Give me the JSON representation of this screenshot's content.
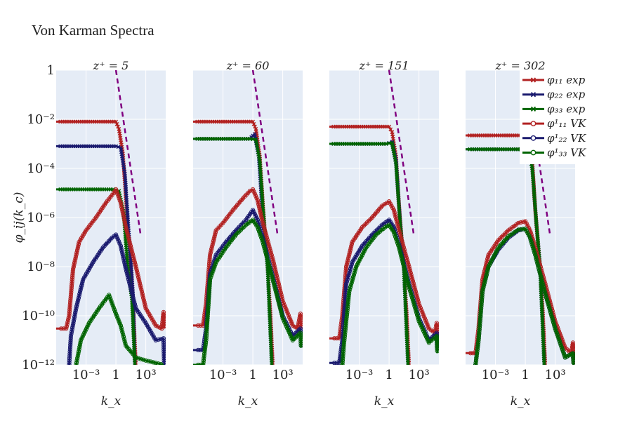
{
  "chart_data": {
    "type": "line",
    "title": "Von Karman Spectra",
    "xlabel": "k_x",
    "ylabel": "φ_ij(k_c)",
    "x_scale": "log",
    "y_scale": "log",
    "xlim": [
      1e-06,
      100000
    ],
    "ylim": [
      1e-12,
      1
    ],
    "x_ticks": [
      "10⁻³",
      "1",
      "10³"
    ],
    "y_ticks": [
      "1",
      "10⁻²",
      "10⁻⁴",
      "10⁻⁶",
      "10⁻⁸",
      "10⁻¹⁰",
      "10⁻¹²"
    ],
    "grid": true,
    "legend_position": "top-right",
    "colors": {
      "phi11": "#b22222",
      "phi22": "#1a1a6e",
      "phi33": "#006400",
      "ref": "#800080",
      "plot_bg": "#e5ecf6"
    },
    "legend": [
      {
        "label": "φ₁₁ exp",
        "color": "#b22222",
        "marker": "x"
      },
      {
        "label": "φ₂₂ exp",
        "color": "#1a1a6e",
        "marker": "x"
      },
      {
        "label": "φ₃₃ exp",
        "color": "#006400",
        "marker": "x"
      },
      {
        "label": "φ¹₁₁ VK",
        "color": "#b22222",
        "marker": "circle"
      },
      {
        "label": "φ¹₂₂ VK",
        "color": "#1a1a6e",
        "marker": "circle"
      },
      {
        "label": "φ¹₃₃ VK",
        "color": "#006400",
        "marker": "circle"
      }
    ],
    "panels": [
      {
        "title": "z⁺ = 5",
        "series": [
          {
            "name": "φ₁₁ exp",
            "x": [
              1e-06,
              1,
              2,
              5,
              10,
              30,
              60,
              100
            ],
            "y": [
              0.008,
              0.008,
              0.004,
              0.0004,
              6e-06,
              1e-08,
              1e-10,
              1e-12
            ]
          },
          {
            "name": "φ₂₂ exp",
            "x": [
              1e-06,
              1,
              3,
              8,
              20,
              50,
              80
            ],
            "y": [
              0.0008,
              0.0008,
              0.0007,
              6e-05,
              2e-07,
              1e-09,
              1e-12
            ]
          },
          {
            "name": "φ₃₃ exp",
            "x": [
              1e-06,
              0.5,
              2,
              6,
              15,
              40,
              80
            ],
            "y": [
              1.4e-05,
              1.4e-05,
              1.2e-05,
              1.5e-06,
              1e-08,
              5e-10,
              1e-12
            ]
          },
          {
            "name": "φ¹₁₁ VK",
            "x": [
              1e-06,
              1e-05,
              2e-05,
              5e-05,
              0.0002,
              0.001,
              0.01,
              0.1,
              0.6,
              1,
              3,
              10,
              100,
              1000,
              10000,
              40000,
              60000,
              70000
            ],
            "y": [
              3e-11,
              3e-11,
              1e-10,
              8e-09,
              1e-07,
              3e-07,
              1e-06,
              4e-06,
              1e-05,
              1.4e-05,
              4e-06,
              4e-07,
              1e-08,
              2e-10,
              4e-11,
              3e-11,
              1.4e-10,
              3e-11
            ]
          },
          {
            "name": "φ¹₂₂ VK",
            "x": [
              2e-05,
              3e-05,
              0.0001,
              0.0005,
              0.005,
              0.05,
              0.4,
              1,
              3,
              10,
              100,
              1000,
              10000,
              60000,
              70000
            ],
            "y": [
              1e-12,
              1.5e-11,
              2e-10,
              3e-09,
              1.5e-08,
              6e-08,
              1.5e-07,
              2e-07,
              7e-08,
              8e-09,
              2e-10,
              5e-11,
              1e-11,
              1.2e-11,
              1e-12
            ]
          },
          {
            "name": "φ¹₃₃ VK",
            "x": [
              0.0001,
              0.0003,
              0.002,
              0.02,
              0.2,
              1,
              3,
              10,
              100,
              1000,
              10000,
              60000
            ],
            "y": [
              1e-12,
              1e-11,
              5e-11,
              2e-10,
              7e-10,
              1.2e-10,
              4e-11,
              6e-12,
              2e-12,
              1.5e-12,
              1.2e-12,
              1e-12
            ]
          },
          {
            "name": "ref",
            "x": [
              1,
              300
            ],
            "y": [
              1,
              2e-07
            ]
          }
        ]
      },
      {
        "title": "z⁺ = 60",
        "series": [
          {
            "name": "φ₁₁ exp",
            "x": [
              1e-06,
              1,
              2,
              5,
              10,
              30,
              60,
              100
            ],
            "y": [
              0.008,
              0.008,
              0.004,
              0.0003,
              4e-06,
              1e-08,
              1e-10,
              1e-12
            ]
          },
          {
            "name": "φ₂₂ exp",
            "x": [
              1e-06,
              0.5,
              1.5,
              4,
              10,
              30,
              80
            ],
            "y": [
              0.0016,
              0.0016,
              0.0025,
              0.0003,
              1e-06,
              1e-08,
              1e-12
            ]
          },
          {
            "name": "φ₃₃ exp",
            "x": [
              1e-06,
              0.5,
              2,
              5,
              12,
              30,
              80
            ],
            "y": [
              0.0016,
              0.0016,
              0.0015,
              0.0002,
              1e-06,
              1e-08,
              1e-12
            ]
          },
          {
            "name": "φ¹₁₁ VK",
            "x": [
              1e-06,
              1e-05,
              2e-05,
              5e-05,
              0.0002,
              0.001,
              0.01,
              0.1,
              0.5,
              1,
              3,
              10,
              100,
              1000,
              10000,
              30000,
              60000,
              70000
            ],
            "y": [
              4e-11,
              4e-11,
              3e-10,
              3e-08,
              3e-07,
              6e-07,
              2e-06,
              6e-06,
              1.2e-05,
              1.4e-05,
              5e-06,
              6e-07,
              2e-08,
              4e-10,
              4e-11,
              3e-11,
              1.2e-10,
              3e-11
            ]
          },
          {
            "name": "φ¹₂₂ VK",
            "x": [
              1e-06,
              1e-05,
              2e-05,
              5e-05,
              0.0002,
              0.002,
              0.02,
              0.2,
              1,
              3,
              10,
              100,
              1000,
              10000,
              60000,
              70000
            ],
            "y": [
              4e-12,
              4e-12,
              3e-11,
              5e-09,
              3e-08,
              1e-07,
              3e-07,
              8e-07,
              2e-06,
              8e-07,
              1.5e-07,
              4e-09,
              1e-10,
              1.5e-11,
              3e-11,
              5e-12
            ]
          },
          {
            "name": "φ¹₃₃ VK",
            "x": [
              1e-06,
              1e-05,
              2e-05,
              5e-05,
              0.0002,
              0.002,
              0.02,
              0.2,
              1,
              3,
              10,
              100,
              1000,
              10000,
              60000,
              70000
            ],
            "y": [
              1e-12,
              1e-12,
              1e-11,
              3e-09,
              1.5e-08,
              6e-08,
              2e-07,
              5e-07,
              8e-07,
              4e-07,
              1e-07,
              3e-09,
              8e-11,
              1e-11,
              2e-11,
              5e-12
            ]
          },
          {
            "name": "ref",
            "x": [
              1,
              300
            ],
            "y": [
              1,
              2e-07
            ]
          }
        ]
      },
      {
        "title": "z⁺ = 151",
        "series": [
          {
            "name": "φ₁₁ exp",
            "x": [
              1e-06,
              1,
              2,
              5,
              10,
              30,
              60,
              100
            ],
            "y": [
              0.005,
              0.005,
              0.003,
              0.0003,
              3e-06,
              1e-08,
              1e-10,
              1e-12
            ]
          },
          {
            "name": "φ₂₂ exp",
            "x": [
              1e-06,
              0.5,
              2,
              5,
              12,
              30,
              80
            ],
            "y": [
              0.001,
              0.001,
              0.0012,
              0.0002,
              1e-06,
              1e-08,
              1e-12
            ]
          },
          {
            "name": "φ₃₃ exp",
            "x": [
              1e-06,
              0.5,
              2,
              5,
              12,
              30,
              80
            ],
            "y": [
              0.001,
              0.001,
              0.0011,
              0.00015,
              8e-07,
              1e-08,
              1e-12
            ]
          },
          {
            "name": "φ¹₁₁ VK",
            "x": [
              1e-06,
              1e-05,
              2e-05,
              5e-05,
              0.0002,
              0.002,
              0.02,
              0.2,
              1,
              3,
              10,
              100,
              1000,
              10000,
              40000,
              60000,
              70000
            ],
            "y": [
              1.2e-11,
              1.2e-11,
              1e-10,
              1e-08,
              1e-07,
              4e-07,
              1e-06,
              3e-06,
              4.5e-06,
              2e-06,
              3e-07,
              1e-08,
              3e-10,
              3e-11,
              2e-11,
              5e-11,
              1.5e-11
            ]
          },
          {
            "name": "φ¹₂₂ VK",
            "x": [
              1e-06,
              1e-05,
              2e-05,
              5e-05,
              0.0002,
              0.002,
              0.02,
              0.2,
              1,
              3,
              10,
              100,
              1000,
              10000,
              60000,
              70000
            ],
            "y": [
              1.2e-12,
              1.2e-12,
              1e-11,
              2e-09,
              1.5e-08,
              7e-08,
              2e-07,
              5e-07,
              8e-07,
              4e-07,
              8e-08,
              2e-09,
              8e-11,
              1e-11,
              2e-11,
              4e-12
            ]
          },
          {
            "name": "φ¹₃₃ VK",
            "x": [
              2e-05,
              3e-05,
              0.0001,
              0.0005,
              0.005,
              0.05,
              0.4,
              1,
              3,
              10,
              100,
              1000,
              10000,
              60000,
              70000
            ],
            "y": [
              1e-12,
              8e-12,
              1e-09,
              1e-08,
              6e-08,
              2e-07,
              4e-07,
              5e-07,
              2.5e-07,
              6e-08,
              1.5e-09,
              6e-11,
              8e-12,
              1.5e-11,
              3e-12
            ]
          },
          {
            "name": "ref",
            "x": [
              1,
              300
            ],
            "y": [
              1,
              2e-07
            ]
          }
        ]
      },
      {
        "title": "z⁺ = 302",
        "series": [
          {
            "name": "φ₁₁ exp",
            "x": [
              1e-06,
              1,
              2,
              5,
              10,
              30,
              60,
              100
            ],
            "y": [
              0.0022,
              0.0022,
              0.0015,
              0.0002,
              2e-06,
              1e-08,
              1e-10,
              1e-12
            ]
          },
          {
            "name": "φ₂₂ exp",
            "x": [
              1e-06,
              0.5,
              2,
              5,
              12,
              30,
              80
            ],
            "y": [
              0.0006,
              0.0006,
              0.0006,
              0.0001,
              8e-07,
              1e-08,
              1e-12
            ]
          },
          {
            "name": "φ₃₃ exp",
            "x": [
              1e-06,
              0.5,
              2,
              5,
              12,
              30,
              80
            ],
            "y": [
              0.0006,
              0.0006,
              0.0006,
              0.0001,
              8e-07,
              1e-08,
              1e-12
            ]
          },
          {
            "name": "φ¹₁₁ VK",
            "x": [
              1e-06,
              1e-05,
              2e-05,
              5e-05,
              0.0002,
              0.002,
              0.02,
              0.2,
              1,
              3,
              10,
              100,
              1000,
              10000,
              40000,
              60000,
              70000
            ],
            "y": [
              3e-12,
              3e-12,
              3e-11,
              3e-09,
              3e-08,
              1.2e-07,
              3e-07,
              6e-07,
              7e-07,
              3e-07,
              6e-08,
              2e-09,
              6e-11,
              5e-12,
              3e-12,
              8e-12,
              1e-12
            ]
          },
          {
            "name": "φ¹₂₂ VK",
            "x": [
              1e-05,
              2e-05,
              5e-05,
              0.0002,
              0.002,
              0.02,
              0.2,
              1,
              3,
              10,
              100,
              1000,
              10000,
              60000,
              70000
            ],
            "y": [
              1e-12,
              1e-11,
              1e-09,
              1e-08,
              5e-08,
              1.5e-07,
              3e-07,
              3.5e-07,
              1.5e-07,
              3e-08,
              8e-10,
              3e-11,
              2e-12,
              3e-12,
              1e-12
            ]
          },
          {
            "name": "φ¹₃₃ VK",
            "x": [
              1e-05,
              2e-05,
              5e-05,
              0.0002,
              0.002,
              0.02,
              0.2,
              1,
              3,
              10,
              100,
              1000,
              10000,
              60000,
              70000
            ],
            "y": [
              1e-12,
              1e-11,
              1e-09,
              1e-08,
              6e-08,
              1.7e-07,
              3.2e-07,
              3.5e-07,
              1.5e-07,
              3e-08,
              8e-10,
              3e-11,
              2e-12,
              3e-12,
              1e-12
            ]
          },
          {
            "name": "ref",
            "x": [
              1,
              300
            ],
            "y": [
              1,
              2e-07
            ]
          }
        ]
      }
    ]
  }
}
